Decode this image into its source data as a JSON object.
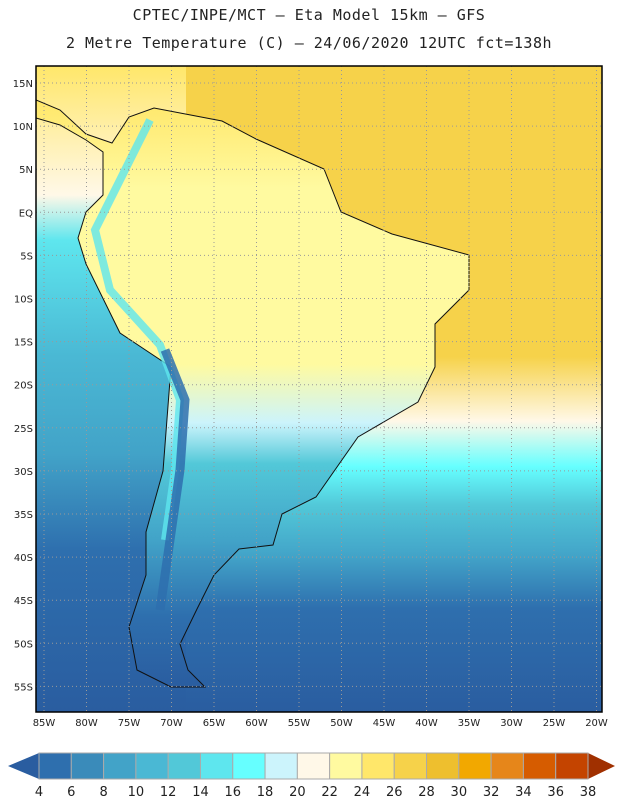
{
  "header": {
    "line1": "CPTEC/INPE/MCT –  Eta Model 15km – GFS",
    "line2": "2 Metre Temperature (C) – 24/06/2020 12UTC fct=138h"
  },
  "map": {
    "lat_labels": [
      "15N",
      "10N",
      "5N",
      "EQ",
      "5S",
      "10S",
      "15S",
      "20S",
      "25S",
      "30S",
      "35S",
      "40S",
      "45S",
      "50S",
      "55S"
    ],
    "lon_labels": [
      "85W",
      "80W",
      "75W",
      "70W",
      "65W",
      "60W",
      "55W",
      "50W",
      "45W",
      "40W",
      "35W",
      "30W",
      "25W",
      "20W"
    ]
  },
  "colorbar": {
    "labels": [
      "4",
      "6",
      "8",
      "10",
      "12",
      "14",
      "16",
      "18",
      "20",
      "22",
      "24",
      "26",
      "28",
      "30",
      "32",
      "34",
      "36",
      "38"
    ],
    "colors": [
      "#2e6fae",
      "#3a8bba",
      "#42a3c8",
      "#4ab8d4",
      "#52c8d8",
      "#5ee6ee",
      "#66ffff",
      "#ccf4fc",
      "#fff8e8",
      "#fffaa0",
      "#ffe76a",
      "#f6d24a",
      "#eebf2e",
      "#f2a800",
      "#e6861a",
      "#d65c00",
      "#c44400"
    ],
    "below_color": "#2a5da0",
    "above_color": "#a03000"
  }
}
